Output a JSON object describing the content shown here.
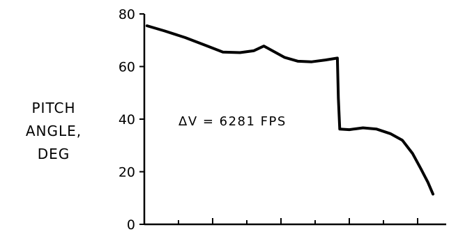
{
  "chart_data": {
    "type": "line",
    "title": "",
    "xlabel": "",
    "ylabel_lines": [
      "PITCH",
      "ANGLE,",
      "DEG"
    ],
    "ylim": [
      0,
      80
    ],
    "yticks": [
      0,
      20,
      40,
      60,
      80
    ],
    "ytick_labels": [
      "0",
      "20",
      "40",
      "60",
      "80"
    ],
    "xticks": [
      0,
      1,
      2,
      3,
      4,
      5,
      6,
      7,
      8,
      9
    ],
    "xlim": [
      0,
      9.3
    ],
    "annotation": "ΔV = 6281 FPS",
    "grid": false,
    "series": [
      {
        "points": [
          [
            0.08,
            75.5
          ],
          [
            0.6,
            73.5
          ],
          [
            1.2,
            71
          ],
          [
            1.8,
            68
          ],
          [
            2.3,
            65.5
          ],
          [
            2.8,
            65.3
          ],
          [
            3.2,
            66
          ],
          [
            3.5,
            67.8
          ],
          [
            3.75,
            66
          ],
          [
            4.1,
            63.5
          ],
          [
            4.5,
            62
          ],
          [
            4.9,
            61.8
          ],
          [
            5.3,
            62.5
          ],
          [
            5.65,
            63.2
          ],
          [
            5.68,
            48
          ],
          [
            5.72,
            36.2
          ],
          [
            6.0,
            36
          ],
          [
            6.4,
            36.7
          ],
          [
            6.8,
            36.2
          ],
          [
            7.2,
            34.5
          ],
          [
            7.55,
            32
          ],
          [
            7.85,
            27
          ],
          [
            8.1,
            21
          ],
          [
            8.3,
            16
          ],
          [
            8.45,
            11.5
          ]
        ]
      }
    ]
  }
}
